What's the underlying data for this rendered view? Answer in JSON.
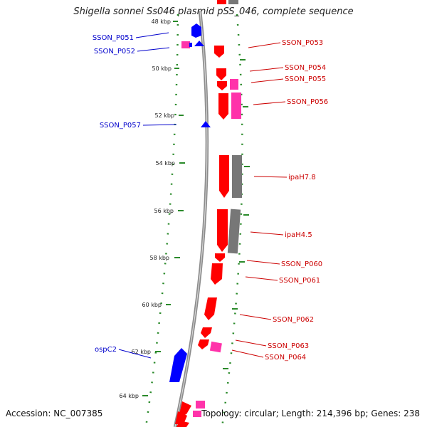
{
  "title": "Shigella sonnei Ss046 plasmid pSS_046, complete sequence",
  "footer": {
    "accession": "Accession: NC_007385",
    "topology": "Topology: circular; Length: 214,396 bp; Genes: 238"
  },
  "scale_labels": [
    "48 kbp",
    "50 kbp",
    "52 kbp",
    "54 kbp",
    "56 kbp",
    "58 kbp",
    "60 kbp",
    "62 kbp",
    "64 kbp"
  ],
  "colors": {
    "forward_cds": "#0000ff",
    "reverse_cds": "#ff0000",
    "other_feature": "#ff33aa",
    "grey_feature": "#777777",
    "gc_dots": "#2a8a2a",
    "backbone": "#8c8c8c"
  },
  "genes_left": [
    {
      "name": "SSON_P051"
    },
    {
      "name": "SSON_P052"
    },
    {
      "name": "SSON_P057"
    },
    {
      "name": "ospC2"
    }
  ],
  "genes_right": [
    {
      "name": "SSON_P053"
    },
    {
      "name": "SSON_P054"
    },
    {
      "name": "SSON_P055"
    },
    {
      "name": "SSON_P056"
    },
    {
      "name": "ipaH7.8"
    },
    {
      "name": "ipaH4.5"
    },
    {
      "name": "SSON_P060"
    },
    {
      "name": "SSON_P061"
    },
    {
      "name": "SSON_P062"
    },
    {
      "name": "SSON_P063"
    },
    {
      "name": "SSON_P064"
    }
  ]
}
